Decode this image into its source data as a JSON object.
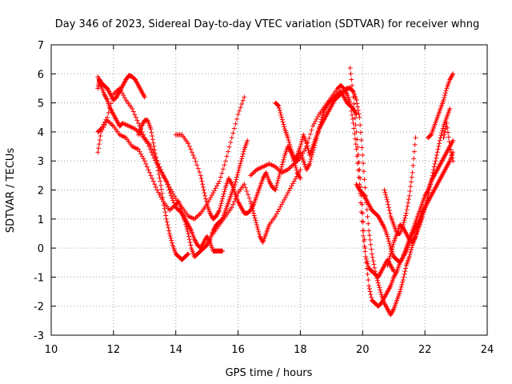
{
  "chart_data": {
    "type": "scatter",
    "title": "Day 346 of 2023, Sidereal Day-to-day VTEC variation (SDTVAR) for receiver whng",
    "xlabel": "GPS time / hours",
    "ylabel": "SDTVAR / TECUs",
    "xlim": [
      10,
      24
    ],
    "ylim": [
      -3,
      7
    ],
    "xticks": [
      "10",
      "12",
      "14",
      "16",
      "18",
      "20",
      "22",
      "24"
    ],
    "yticks": [
      "-3",
      "-2",
      "-1",
      "0",
      "1",
      "2",
      "3",
      "4",
      "5",
      "6",
      "7"
    ],
    "grid": true,
    "marker": "plus",
    "color": "#ff0000",
    "series": [
      {
        "x": [
          11.5,
          11.55,
          11.6,
          11.7,
          11.8,
          11.9,
          12.0,
          12.1,
          12.2,
          12.3,
          12.4,
          12.5,
          12.6,
          12.7,
          12.8,
          12.9,
          13.0
        ],
        "y": [
          5.5,
          5.8,
          5.7,
          5.6,
          5.5,
          5.3,
          5.1,
          5.2,
          5.4,
          5.6,
          5.8,
          5.95,
          5.9,
          5.8,
          5.6,
          5.4,
          5.2
        ]
      },
      {
        "x": [
          11.5,
          11.6,
          11.7,
          11.8,
          11.9,
          12.0,
          12.1,
          12.2,
          12.3,
          12.5,
          12.7,
          12.9,
          13.1,
          13.3,
          13.5,
          13.7,
          13.85,
          14.0,
          14.1,
          14.2,
          14.3,
          14.4,
          14.5,
          14.6,
          14.7,
          14.8,
          14.9,
          15.0,
          15.1,
          15.2,
          15.3,
          15.4,
          15.5
        ],
        "y": [
          5.9,
          5.6,
          5.3,
          5.1,
          4.8,
          4.6,
          4.4,
          4.2,
          4.3,
          4.2,
          4.1,
          3.9,
          3.6,
          3.1,
          2.7,
          2.3,
          1.8,
          1.4,
          1.3,
          1.2,
          1.0,
          0.8,
          0.6,
          0.3,
          0.1,
          0.0,
          0.2,
          0.4,
          0.2,
          -0.1,
          -0.1,
          -0.1,
          -0.1
        ]
      },
      {
        "x": [
          11.5,
          11.6,
          11.8,
          12.0,
          12.2,
          12.4,
          12.6,
          12.8,
          13.0,
          13.2,
          13.4,
          13.6,
          13.8,
          14.0,
          14.1,
          14.2,
          14.3,
          14.4,
          14.5,
          14.6,
          14.7,
          14.8,
          14.9,
          15.0,
          15.1,
          15.2,
          15.3,
          15.4,
          15.5,
          15.6,
          15.7,
          15.8,
          15.9,
          16.0,
          16.1,
          16.2,
          16.3
        ],
        "y": [
          3.3,
          4.0,
          4.4,
          4.2,
          3.9,
          3.8,
          3.5,
          3.4,
          3.0,
          2.5,
          2.0,
          1.6,
          1.3,
          1.5,
          1.6,
          1.2,
          0.9,
          0.5,
          0.0,
          -0.3,
          -0.2,
          -0.1,
          0.0,
          0.1,
          0.3,
          0.6,
          0.8,
          0.9,
          1.0,
          1.3,
          1.6,
          1.9,
          2.2,
          2.6,
          3.0,
          3.4,
          3.7
        ]
      },
      {
        "x": [
          11.5,
          11.6,
          11.8,
          12.0,
          12.2,
          12.4,
          12.6,
          12.8,
          13.0,
          13.2,
          13.4,
          13.6,
          13.8,
          14.0,
          14.2,
          14.4,
          14.6,
          14.8,
          15.0,
          15.2,
          15.4,
          15.6,
          15.8,
          16.0,
          16.2
        ],
        "y": [
          4.0,
          4.1,
          4.5,
          5.3,
          5.5,
          5.1,
          4.8,
          4.3,
          3.8,
          3.5,
          3.0,
          2.5,
          2.1,
          1.7,
          1.4,
          1.1,
          1.0,
          1.2,
          1.5,
          1.9,
          2.3,
          3.0,
          3.8,
          4.6,
          5.2
        ]
      },
      {
        "x": [
          12.8,
          12.9,
          13.0,
          13.1,
          13.2,
          13.3,
          13.4,
          13.5,
          13.6,
          13.7,
          13.8,
          13.9,
          14.0,
          14.1,
          14.2,
          14.3,
          14.4
        ],
        "y": [
          3.9,
          4.2,
          4.4,
          4.4,
          4.1,
          3.5,
          2.9,
          2.3,
          1.6,
          1.0,
          0.5,
          0.1,
          -0.2,
          -0.3,
          -0.4,
          -0.3,
          -0.2
        ]
      },
      {
        "x": [
          14.0,
          14.2,
          14.4,
          14.6,
          14.8,
          14.9,
          15.0,
          15.1,
          15.2,
          15.3,
          15.4,
          15.5,
          15.6,
          15.7,
          15.8,
          15.9,
          16.0,
          16.1,
          16.2,
          16.3,
          16.4,
          16.5,
          16.6,
          16.7,
          16.8,
          16.9,
          17.0,
          17.1,
          17.2,
          17.3,
          17.4,
          17.5,
          17.6,
          17.7,
          17.8,
          17.9,
          18.0
        ],
        "y": [
          3.9,
          3.9,
          3.6,
          3.1,
          2.5,
          2.0,
          1.5,
          1.2,
          1.0,
          1.1,
          1.3,
          1.7,
          2.1,
          2.4,
          2.2,
          1.9,
          1.6,
          1.4,
          1.2,
          1.2,
          1.3,
          1.5,
          1.8,
          2.1,
          2.4,
          2.6,
          2.3,
          2.1,
          2.0,
          2.4,
          2.8,
          3.2,
          3.5,
          3.3,
          3.0,
          2.6,
          2.4
        ]
      },
      {
        "x": [
          15.2,
          15.4,
          15.6,
          15.8,
          16.0,
          16.2,
          16.4,
          16.5,
          16.6,
          16.7,
          16.8,
          16.9,
          17.0,
          17.2,
          17.4,
          17.6,
          17.8,
          18.0
        ],
        "y": [
          0.5,
          0.8,
          1.1,
          1.4,
          1.9,
          2.2,
          1.6,
          1.2,
          0.8,
          0.4,
          0.2,
          0.5,
          0.8,
          1.1,
          1.5,
          1.9,
          2.3,
          2.7
        ]
      },
      {
        "x": [
          16.4,
          16.6,
          16.8,
          17.0,
          17.2,
          17.4,
          17.6,
          17.8,
          18.0,
          18.2,
          18.4,
          18.6,
          18.8,
          19.0,
          19.2,
          19.3,
          19.4,
          19.5,
          19.6,
          19.7,
          19.8,
          19.9,
          20.0,
          20.1,
          20.2,
          20.3,
          20.4,
          20.5,
          20.6,
          20.7,
          20.8,
          20.9,
          21.0
        ],
        "y": [
          2.5,
          2.7,
          2.8,
          2.9,
          2.8,
          2.6,
          2.7,
          2.9,
          3.1,
          3.5,
          4.2,
          4.6,
          4.9,
          5.2,
          5.5,
          5.6,
          5.5,
          5.3,
          5.0,
          4.3,
          3.4,
          2.2,
          0.6,
          -0.3,
          -0.7,
          -0.8,
          -0.9,
          -1.0,
          -0.8,
          -0.6,
          -0.4,
          -0.6,
          -0.8
        ]
      },
      {
        "x": [
          17.2,
          17.3,
          17.4,
          17.5,
          17.6,
          17.7,
          17.8,
          17.9,
          18.0,
          18.1,
          18.2,
          18.3,
          18.4,
          18.5,
          18.6,
          18.7,
          18.8,
          18.9,
          19.0,
          19.1,
          19.2,
          19.3,
          19.4,
          19.5,
          19.6,
          19.7,
          19.8
        ],
        "y": [
          5.0,
          4.9,
          4.5,
          4.1,
          3.8,
          3.4,
          3.1,
          3.0,
          3.3,
          3.0,
          2.7,
          2.9,
          3.3,
          3.7,
          4.1,
          4.5,
          4.8,
          5.0,
          5.1,
          5.2,
          5.3,
          5.4,
          5.2,
          5.0,
          4.9,
          4.8,
          4.6
        ]
      },
      {
        "x": [
          17.8,
          17.9,
          18.0,
          18.1,
          18.2,
          18.3,
          18.4,
          18.5,
          18.6,
          18.7,
          18.8,
          18.9,
          19.0,
          19.1,
          19.2,
          19.3,
          19.4,
          19.5,
          19.6,
          19.7,
          19.8,
          19.9,
          20.0,
          20.1,
          20.2,
          20.3,
          20.4,
          20.5,
          20.6,
          20.7,
          20.8,
          20.9,
          21.0,
          21.1,
          21.2,
          21.3,
          21.4,
          21.5,
          21.6,
          21.7,
          21.8,
          21.9,
          22.0
        ],
        "y": [
          3.0,
          3.2,
          3.5,
          3.9,
          3.6,
          3.2,
          3.5,
          3.8,
          4.1,
          4.3,
          4.5,
          4.7,
          4.9,
          5.1,
          5.2,
          5.3,
          5.4,
          5.5,
          5.5,
          5.4,
          5.1,
          4.5,
          3.2,
          1.8,
          0.6,
          -0.2,
          -0.8,
          -1.2,
          -1.6,
          -1.9,
          -2.1,
          -2.3,
          -2.1,
          -1.8,
          -1.5,
          -1.1,
          -0.6,
          -0.3,
          0.1,
          0.4,
          0.8,
          1.1,
          1.4
        ]
      },
      {
        "x": [
          19.6,
          19.7,
          19.8,
          19.9,
          20.0,
          20.1,
          20.2,
          20.3,
          20.4,
          20.5,
          20.6,
          20.7,
          20.8,
          20.9,
          21.0,
          21.1,
          21.2,
          21.3,
          21.4,
          21.5,
          21.6,
          21.7,
          21.8,
          21.9,
          22.0,
          22.1,
          22.2,
          22.3,
          22.4,
          22.5,
          22.6,
          22.7,
          22.8,
          22.9
        ],
        "y": [
          6.2,
          5.2,
          4.0,
          2.7,
          1.2,
          -0.3,
          -1.3,
          -1.8,
          -1.9,
          -2.0,
          -1.9,
          -1.7,
          -1.5,
          -1.3,
          -1.0,
          -0.8,
          -0.5,
          -0.3,
          -0.1,
          0.2,
          0.5,
          0.7,
          0.9,
          1.2,
          1.4,
          1.6,
          1.8,
          2.0,
          2.2,
          2.4,
          2.6,
          2.8,
          3.0,
          3.3
        ]
      },
      {
        "x": [
          19.8,
          19.9,
          20.0,
          20.1,
          20.2,
          20.3,
          20.4,
          20.5,
          20.6,
          20.7,
          20.8,
          20.9,
          21.0,
          21.1,
          21.2,
          21.3,
          21.4,
          21.5,
          21.6,
          21.7,
          21.8,
          21.9,
          22.0,
          22.1,
          22.2,
          22.3,
          22.4,
          22.5,
          22.6,
          22.7,
          22.8,
          22.9
        ],
        "y": [
          2.2,
          2.0,
          1.9,
          1.7,
          1.5,
          1.3,
          1.2,
          1.1,
          0.9,
          0.7,
          0.4,
          0.0,
          -0.3,
          -0.4,
          -0.5,
          -0.3,
          0.0,
          0.3,
          0.6,
          0.9,
          1.2,
          1.5,
          1.8,
          2.0,
          2.3,
          2.5,
          2.7,
          2.9,
          3.1,
          3.3,
          3.5,
          3.7
        ]
      },
      {
        "x": [
          20.7,
          20.8,
          20.9,
          21.0,
          21.1,
          21.2,
          21.3,
          21.4,
          21.5,
          21.6,
          21.7
        ],
        "y": [
          2.0,
          1.6,
          1.1,
          0.8,
          0.5,
          0.5,
          0.8,
          1.2,
          1.8,
          2.6,
          3.8
        ]
      },
      {
        "x": [
          20.8,
          20.9,
          21.0,
          21.1,
          21.2,
          21.3,
          21.4,
          21.5,
          21.6,
          21.7,
          21.8,
          21.9,
          22.0,
          22.1,
          22.2,
          22.3,
          22.4,
          22.5,
          22.6,
          22.7,
          22.8
        ],
        "y": [
          -0.6,
          -0.2,
          0.2,
          0.5,
          0.8,
          0.7,
          0.5,
          0.3,
          0.2,
          0.4,
          0.7,
          1.0,
          1.4,
          1.8,
          2.3,
          2.8,
          3.3,
          3.8,
          4.2,
          4.5,
          4.8
        ]
      },
      {
        "x": [
          22.1,
          22.2,
          22.3,
          22.4,
          22.5,
          22.6,
          22.7,
          22.8,
          22.9
        ],
        "y": [
          3.8,
          3.9,
          4.2,
          4.5,
          4.8,
          5.1,
          5.5,
          5.8,
          6.0
        ]
      },
      {
        "x": [
          22.6,
          22.7,
          22.8,
          22.9
        ],
        "y": [
          3.8,
          4.3,
          3.5,
          3.0
        ]
      }
    ]
  }
}
